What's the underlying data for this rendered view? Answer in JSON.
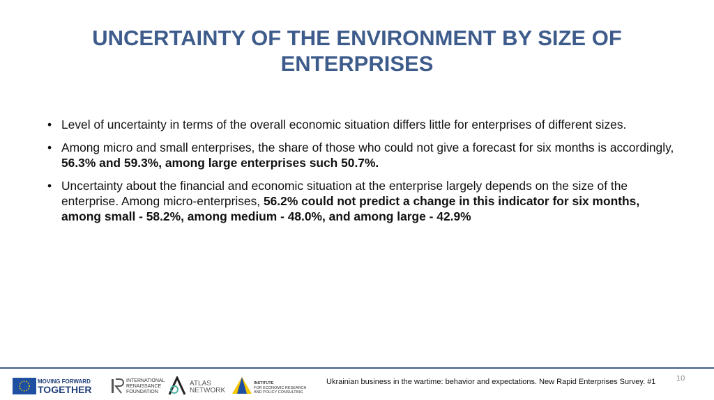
{
  "title": "UNCERTAINTY OF THE ENVIRONMENT BY SIZE OF ENTERPRISES",
  "bullets": [
    {
      "segments": [
        {
          "text": "Level of uncertainty in terms of the overall economic situation differs little for enterprises of different sizes.",
          "bold": false
        }
      ]
    },
    {
      "segments": [
        {
          "text": "Among micro and small enterprises, the share of those who could not give a forecast for six months is accordingly, ",
          "bold": false
        },
        {
          "text": "56.3% and 59.3%, among large enterprises such 50.7%.",
          "bold": true
        }
      ]
    },
    {
      "segments": [
        {
          "text": "Uncertainty about the financial and economic situation at the enterprise largely depends on the size of the enterprise. Among micro-enterprises, ",
          "bold": false
        },
        {
          "text": "56.2% could not predict a change in this indicator for six months, among small - 58.2%, among medium - 48.0%, and among large - 42.9%",
          "bold": true
        }
      ]
    }
  ],
  "footer": {
    "logos": {
      "mft_top": "MOVING FORWARD",
      "mft_bottom": "TOGETHER",
      "irf": [
        "INTERNATIONAL",
        "RENAISSANCE",
        "FOUNDATION"
      ],
      "atlas": [
        "ATLAS",
        "NETWORK"
      ],
      "ier": [
        "INSTITUTE",
        "FOR ECONOMIC RESEARCH",
        "AND POLICY CONSULTING"
      ]
    },
    "caption": "Ukrainian business in the wartime: behavior and expectations. New Rapid Enterprises Survey. #1",
    "page_number": "10"
  }
}
